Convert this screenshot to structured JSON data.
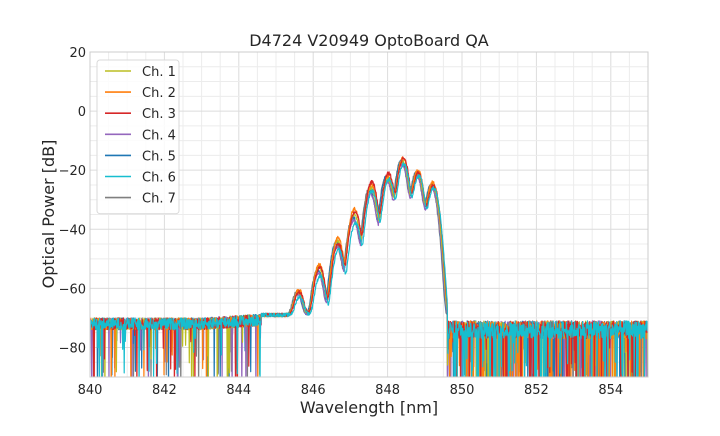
{
  "chart_data": {
    "type": "line",
    "title": "D4724 V20949 OptoBoard QA",
    "xlabel": "Wavelength [nm]",
    "ylabel": "Optical Power [dB]",
    "xlim": [
      840,
      855
    ],
    "ylim": [
      -90,
      20
    ],
    "xticks": [
      840,
      842,
      844,
      846,
      848,
      850,
      852,
      854
    ],
    "yticks": [
      -80,
      -60,
      -40,
      -20,
      0,
      20
    ],
    "grid": true,
    "legend_position": "top-left",
    "noise_floor_db": -72,
    "peaks_nm": [
      845.6,
      846.15,
      846.65,
      847.1,
      847.55,
      848.0,
      848.4,
      848.8,
      849.2
    ],
    "series": [
      {
        "name": "Ch. 1",
        "color": "#bcbd22",
        "peak_db": [
          -62,
          -53,
          -44,
          -35,
          -26,
          -23,
          -17,
          -21,
          -25
        ]
      },
      {
        "name": "Ch. 2",
        "color": "#ff7f0e",
        "peak_db": [
          -61,
          -52,
          -43,
          -33,
          -25,
          -22,
          -16,
          -20,
          -24
        ]
      },
      {
        "name": "Ch. 3",
        "color": "#d62728",
        "peak_db": [
          -62,
          -53,
          -45,
          -34,
          -24,
          -21,
          -16,
          -21,
          -25
        ]
      },
      {
        "name": "Ch. 4",
        "color": "#9467bd",
        "peak_db": [
          -63,
          -55,
          -46,
          -37,
          -28,
          -24,
          -18,
          -22,
          -26
        ]
      },
      {
        "name": "Ch. 5",
        "color": "#1f77b4",
        "peak_db": [
          -63,
          -54,
          -44,
          -36,
          -27,
          -22,
          -17,
          -21,
          -25
        ]
      },
      {
        "name": "Ch. 6",
        "color": "#17becf",
        "peak_db": [
          -64,
          -56,
          -47,
          -38,
          -27,
          -23,
          -18,
          -22,
          -26
        ]
      },
      {
        "name": "Ch. 7",
        "color": "#7f7f7f",
        "peak_db": [
          -62,
          -54,
          -45,
          -36,
          -26,
          -22,
          -17,
          -21,
          -25
        ]
      }
    ]
  }
}
